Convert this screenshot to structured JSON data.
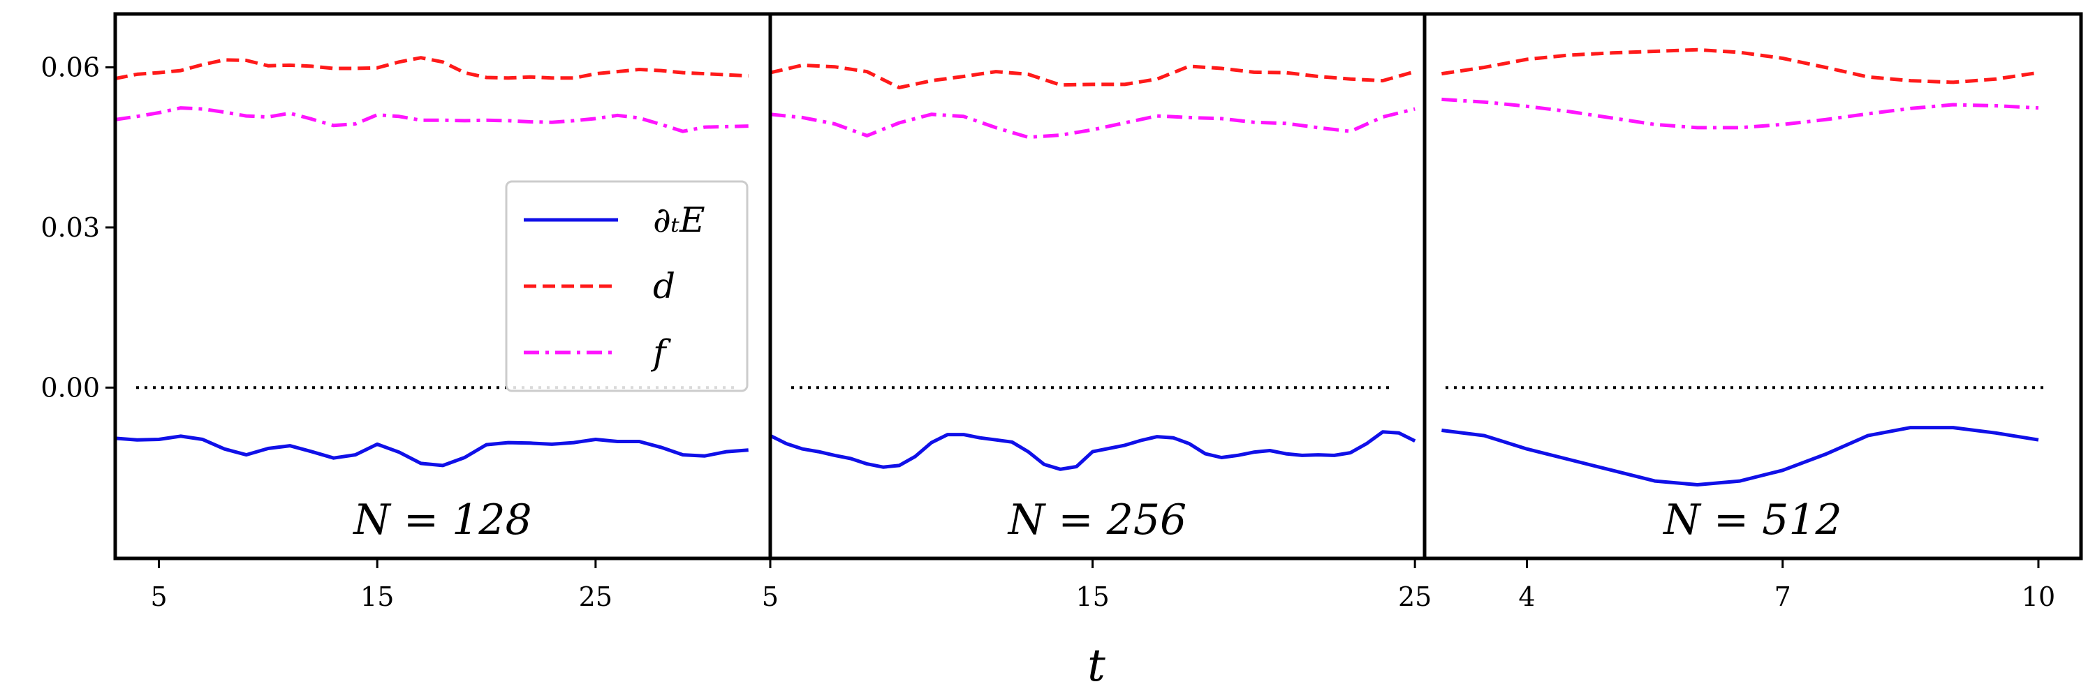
{
  "chart_data": {
    "type": "line",
    "xlabel": "t",
    "ylabel": "",
    "ylim": [
      -0.032,
      0.07
    ],
    "yticks": [
      {
        "value": 0.0,
        "label": "0.00"
      },
      {
        "value": 0.03,
        "label": "0.03"
      },
      {
        "value": 0.06,
        "label": "0.06"
      }
    ],
    "legend": {
      "location": "center-right of first panel",
      "entries": [
        {
          "label": "∂ₜE",
          "color": "#1010e8",
          "style": "solid"
        },
        {
          "label": "d",
          "color": "#ff1a1a",
          "style": "dashed"
        },
        {
          "label": "f",
          "color": "#ff14ff",
          "style": "dashdot"
        }
      ]
    },
    "reference_line": {
      "y": 0.0,
      "style": "dotted",
      "color": "#000000"
    },
    "panels": [
      {
        "label": "N = 128",
        "xlim": [
          3,
          33
        ],
        "xticks": [
          5,
          15,
          25
        ],
        "series": [
          {
            "name": "dE",
            "x": [
              3,
              4,
              5,
              6,
              7,
              8,
              9,
              10,
              11,
              12,
              13,
              14,
              15,
              16,
              17,
              18,
              19,
              20,
              21,
              22,
              23,
              24,
              25,
              26,
              27,
              28,
              29,
              30,
              31,
              32
            ],
            "y": [
              -0.0095,
              -0.0098,
              -0.0097,
              -0.0091,
              -0.0097,
              -0.0115,
              -0.0126,
              -0.0114,
              -0.0109,
              -0.012,
              -0.0132,
              -0.0126,
              -0.0106,
              -0.0121,
              -0.0142,
              -0.0146,
              -0.0131,
              -0.0107,
              -0.0103,
              -0.0104,
              -0.0106,
              -0.0103,
              -0.0097,
              -0.0101,
              -0.0101,
              -0.0112,
              -0.0126,
              -0.0128,
              -0.012,
              -0.0117
            ]
          },
          {
            "name": "d",
            "x": [
              3,
              4,
              5,
              6,
              7,
              8,
              9,
              10,
              11,
              12,
              13,
              14,
              15,
              16,
              17,
              18,
              19,
              20,
              21,
              22,
              23,
              24,
              25,
              26,
              27,
              28,
              29,
              30,
              31,
              32
            ],
            "y": [
              0.0579,
              0.0587,
              0.059,
              0.0594,
              0.0605,
              0.0614,
              0.0613,
              0.0603,
              0.0604,
              0.0602,
              0.0598,
              0.0598,
              0.0599,
              0.061,
              0.0618,
              0.061,
              0.059,
              0.0581,
              0.058,
              0.0582,
              0.058,
              0.058,
              0.0588,
              0.0592,
              0.0596,
              0.0594,
              0.059,
              0.0588,
              0.0586,
              0.0584
            ]
          },
          {
            "name": "f",
            "x": [
              3,
              4,
              5,
              6,
              7,
              8,
              9,
              10,
              11,
              12,
              13,
              14,
              15,
              16,
              17,
              18,
              19,
              20,
              21,
              22,
              23,
              24,
              25,
              26,
              27,
              28,
              29,
              30,
              31,
              32
            ],
            "y": [
              0.0502,
              0.0508,
              0.0515,
              0.0524,
              0.0522,
              0.0516,
              0.0509,
              0.0507,
              0.0514,
              0.0503,
              0.0491,
              0.0494,
              0.0511,
              0.0508,
              0.0501,
              0.0501,
              0.05,
              0.0501,
              0.05,
              0.0498,
              0.0497,
              0.05,
              0.0504,
              0.051,
              0.0505,
              0.0493,
              0.048,
              0.0488,
              0.0489,
              0.049
            ]
          }
        ]
      },
      {
        "label": "N = 256",
        "xlim": [
          5,
          25.3
        ],
        "xticks": [
          5,
          15,
          25
        ],
        "series": [
          {
            "name": "dE",
            "x": [
              5,
              5.5,
              6,
              6.5,
              7,
              7.5,
              8,
              8.5,
              9,
              9.5,
              10,
              10.5,
              11,
              11.5,
              12,
              12.5,
              13,
              13.5,
              14,
              14.5,
              15,
              15.5,
              16,
              16.5,
              17,
              17.5,
              18,
              18.5,
              19,
              19.5,
              20,
              20.5,
              21,
              21.5,
              22,
              22.5,
              23,
              23.5,
              24,
              24.5,
              25
            ],
            "y": [
              -0.009,
              -0.0105,
              -0.0115,
              -0.012,
              -0.0127,
              -0.0133,
              -0.0143,
              -0.0149,
              -0.0146,
              -0.0129,
              -0.0103,
              -0.0088,
              -0.0088,
              -0.0094,
              -0.0098,
              -0.0102,
              -0.012,
              -0.0144,
              -0.0153,
              -0.0148,
              -0.012,
              -0.0114,
              -0.0108,
              -0.0099,
              -0.0092,
              -0.0094,
              -0.0105,
              -0.0124,
              -0.0131,
              -0.0127,
              -0.0121,
              -0.0118,
              -0.0124,
              -0.0127,
              -0.0126,
              -0.0127,
              -0.0122,
              -0.0105,
              -0.0083,
              -0.0085,
              -0.01
            ]
          },
          {
            "name": "d",
            "x": [
              5,
              6,
              7,
              8,
              9,
              10,
              11,
              12,
              13,
              14,
              15,
              16,
              17,
              18,
              19,
              20,
              21,
              22,
              23,
              24,
              25
            ],
            "y": [
              0.059,
              0.0604,
              0.0601,
              0.0592,
              0.0562,
              0.0575,
              0.0583,
              0.0592,
              0.0587,
              0.0567,
              0.0568,
              0.0568,
              0.0578,
              0.0602,
              0.0598,
              0.0591,
              0.059,
              0.0583,
              0.0578,
              0.0575,
              0.0592
            ]
          },
          {
            "name": "f",
            "x": [
              5,
              6,
              7,
              8,
              9,
              10,
              11,
              12,
              13,
              14,
              15,
              16,
              17,
              18,
              19,
              20,
              21,
              22,
              23,
              24,
              25
            ],
            "y": [
              0.0512,
              0.0506,
              0.0494,
              0.0472,
              0.0496,
              0.0512,
              0.0508,
              0.0487,
              0.0469,
              0.0473,
              0.0483,
              0.0496,
              0.0509,
              0.0506,
              0.0504,
              0.0497,
              0.0495,
              0.0487,
              0.048,
              0.0507,
              0.0522
            ]
          }
        ]
      },
      {
        "label": "N = 512",
        "xlim": [
          2.8,
          10.5
        ],
        "xticks": [
          4,
          7,
          10
        ],
        "series": [
          {
            "name": "dE",
            "x": [
              3,
              3.5,
              4,
              4.5,
              5,
              5.5,
              6,
              6.5,
              7,
              7.5,
              8,
              8.5,
              9,
              9.5,
              10
            ],
            "y": [
              -0.008,
              -0.009,
              -0.0115,
              -0.0135,
              -0.0155,
              -0.0175,
              -0.0182,
              -0.0175,
              -0.0155,
              -0.0125,
              -0.009,
              -0.0075,
              -0.0075,
              -0.0085,
              -0.0098
            ]
          },
          {
            "name": "d",
            "x": [
              3,
              3.5,
              4,
              4.5,
              5,
              5.5,
              6,
              6.5,
              7,
              7.5,
              8,
              8.5,
              9,
              9.5,
              10
            ],
            "y": [
              0.0588,
              0.06,
              0.0615,
              0.0623,
              0.0627,
              0.063,
              0.0633,
              0.0628,
              0.0617,
              0.06,
              0.0582,
              0.0575,
              0.0572,
              0.0578,
              0.059
            ]
          },
          {
            "name": "f",
            "x": [
              3,
              3.5,
              4,
              4.5,
              5,
              5.5,
              6,
              6.5,
              7,
              7.5,
              8,
              8.5,
              9,
              9.5,
              10
            ],
            "y": [
              0.054,
              0.0535,
              0.0527,
              0.0517,
              0.0505,
              0.0493,
              0.0487,
              0.0487,
              0.0493,
              0.0502,
              0.0513,
              0.0523,
              0.053,
              0.0528,
              0.0524
            ]
          }
        ]
      }
    ]
  }
}
